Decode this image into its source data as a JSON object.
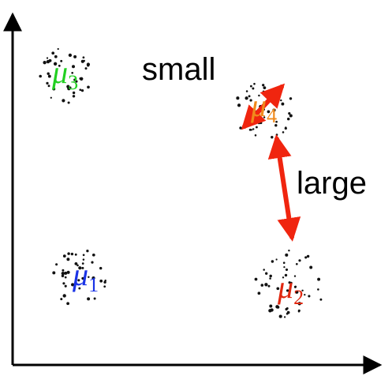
{
  "clusters": [
    {
      "id": "mu3",
      "symbol": "μ",
      "index": "3",
      "color": "#22d022"
    },
    {
      "id": "mu4",
      "symbol": "μ",
      "index": "4",
      "color": "#f08a1c"
    },
    {
      "id": "mu1",
      "symbol": "μ",
      "index": "1",
      "color": "#1a33e6"
    },
    {
      "id": "mu2",
      "symbol": "μ",
      "index": "2",
      "color": "#e02810"
    }
  ],
  "labels": {
    "small": "small",
    "large": "large"
  },
  "colors": {
    "axis": "#000000",
    "dots": "#111111",
    "arrows": "#f0250f"
  }
}
